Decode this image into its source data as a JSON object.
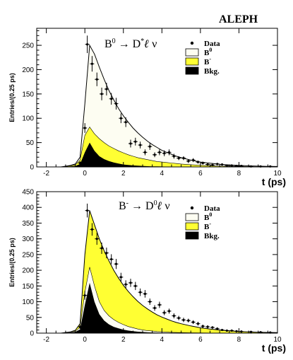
{
  "experiment_label": "ALEPH",
  "chart_data": [
    {
      "type": "area",
      "id": "top",
      "title_parts": {
        "a": "B",
        "a_sup": "0",
        "arrow": "→",
        "b": "D",
        "b_sup": "*",
        "c": "ℓ",
        "d": "ν"
      },
      "xlabel": "t (ps)",
      "ylabel": "Entries/(0.25 ps)",
      "xlim": [
        -2.5,
        10
      ],
      "ylim": [
        0,
        285
      ],
      "xticks": [
        -2,
        0,
        2,
        4,
        6,
        8,
        10
      ],
      "yticks": [
        0,
        50,
        100,
        150,
        200,
        250
      ],
      "legend": {
        "position": "top-right",
        "entries": [
          {
            "label": "Data",
            "style": "dot"
          },
          {
            "label": "B",
            "sup": "0",
            "style": "box",
            "color": "#fdfdf2"
          },
          {
            "label": "B",
            "sup": "-",
            "style": "box",
            "color": "#ffff33"
          },
          {
            "label": "Bkg.",
            "style": "box",
            "color": "#000000"
          }
        ]
      },
      "x": [
        -2.0,
        -1.75,
        -1.5,
        -1.25,
        -1.0,
        -0.75,
        -0.5,
        -0.25,
        0.0,
        0.25,
        0.5,
        0.75,
        1.0,
        1.25,
        1.5,
        1.75,
        2.0,
        2.25,
        2.5,
        2.75,
        3.0,
        3.25,
        3.5,
        3.75,
        4.0,
        4.25,
        4.5,
        4.75,
        5.0,
        5.5,
        6.0,
        6.5,
        7.0,
        7.5,
        8.0,
        8.5,
        9.0,
        9.5,
        10.0
      ],
      "series": [
        {
          "name": "Bkg.",
          "color": "#000000",
          "values": [
            0,
            0,
            0,
            0,
            0.5,
            1,
            2,
            6,
            30,
            50,
            33,
            22,
            16,
            12,
            9,
            7,
            5,
            4,
            3,
            2.5,
            2,
            1.5,
            1.2,
            1,
            0.8,
            0.6,
            0.5,
            0.4,
            0.3,
            0.2,
            0.1,
            0.1,
            0,
            0,
            0,
            0,
            0,
            0,
            0
          ]
        },
        {
          "name": "B-",
          "color": "#ffff33",
          "values": [
            0,
            0,
            0,
            0,
            1,
            2,
            4,
            14,
            65,
            82,
            68,
            58,
            50,
            43,
            38,
            33,
            29,
            25,
            22,
            19,
            17,
            15,
            13,
            11,
            10,
            9,
            8,
            7,
            6,
            4.5,
            3.3,
            2.5,
            1.8,
            1.3,
            1,
            0.7,
            0.5,
            0.3,
            0.2
          ]
        },
        {
          "name": "B0 (total fit)",
          "color": "#fdfdf2",
          "values": [
            0,
            0,
            0,
            0,
            1.5,
            3,
            6,
            20,
            130,
            250,
            232,
            205,
            180,
            157,
            138,
            120,
            105,
            92,
            80,
            70,
            61,
            53,
            46,
            40,
            34,
            30,
            26,
            22,
            19,
            14,
            10,
            7.5,
            5.5,
            4,
            3,
            2.2,
            1.6,
            1.2,
            0.8
          ]
        }
      ],
      "data_points": {
        "x": [
          -0.25,
          0.0,
          0.125,
          0.375,
          0.625,
          0.875,
          1.125,
          1.375,
          1.625,
          1.875,
          2.125,
          2.375,
          2.625,
          2.875,
          3.125,
          3.375,
          3.625,
          3.875,
          4.125,
          4.375,
          4.625,
          4.875,
          5.125,
          5.375,
          5.625,
          5.875,
          6.125,
          6.375,
          6.625,
          6.875,
          7.125,
          7.375,
          7.625,
          7.875,
          8.125,
          8.625,
          9.125,
          9.625
        ],
        "y": [
          8,
          80,
          252,
          212,
          180,
          150,
          160,
          140,
          130,
          100,
          92,
          48,
          52,
          45,
          30,
          42,
          25,
          30,
          28,
          30,
          22,
          18,
          18,
          12,
          14,
          10,
          8,
          5,
          4,
          6,
          5,
          3,
          3,
          2,
          2,
          1,
          1,
          1
        ],
        "err": [
          4,
          10,
          18,
          16,
          14,
          13,
          13,
          12,
          12,
          10,
          10,
          8,
          8,
          7,
          6,
          7,
          5,
          6,
          6,
          6,
          5,
          4,
          4,
          4,
          4,
          3,
          3,
          2,
          2,
          2,
          2,
          2,
          2,
          1,
          1,
          1,
          1,
          1
        ]
      }
    },
    {
      "type": "area",
      "id": "bottom",
      "title_parts": {
        "a": "B",
        "a_sup": "-",
        "arrow": "→",
        "b": "D",
        "b_sup": "0",
        "c": "ℓ",
        "d": "ν"
      },
      "xlabel": "t (ps)",
      "ylabel": "Entries/(0.25 ps)",
      "xlim": [
        -2.5,
        10
      ],
      "ylim": [
        0,
        450
      ],
      "xticks": [
        -2,
        0,
        2,
        4,
        6,
        8,
        10
      ],
      "yticks": [
        0,
        50,
        100,
        150,
        200,
        250,
        300,
        350,
        400,
        450
      ],
      "legend": {
        "position": "top-right",
        "entries": [
          {
            "label": "Data",
            "style": "dot"
          },
          {
            "label": "B",
            "sup": "0",
            "style": "box",
            "color": "#fdfdf2"
          },
          {
            "label": "B",
            "sup": "-",
            "style": "box",
            "color": "#ffff33"
          },
          {
            "label": "Bkg.",
            "style": "box",
            "color": "#000000"
          }
        ]
      },
      "x": [
        -2.0,
        -1.75,
        -1.5,
        -1.25,
        -1.0,
        -0.75,
        -0.5,
        -0.25,
        0.0,
        0.25,
        0.5,
        0.75,
        1.0,
        1.25,
        1.5,
        1.75,
        2.0,
        2.25,
        2.5,
        2.75,
        3.0,
        3.25,
        3.5,
        3.75,
        4.0,
        4.25,
        4.5,
        4.75,
        5.0,
        5.5,
        6.0,
        6.5,
        7.0,
        7.5,
        8.0,
        8.5,
        9.0,
        9.5,
        10.0
      ],
      "series": [
        {
          "name": "Bkg.",
          "color": "#000000",
          "values": [
            0,
            0,
            0,
            0,
            1,
            2,
            4,
            12,
            90,
            160,
            100,
            60,
            40,
            28,
            20,
            15,
            11,
            8,
            6,
            4.5,
            3.5,
            2.5,
            2,
            1.5,
            1.2,
            1,
            0.8,
            0.6,
            0.5,
            0.3,
            0.2,
            0.1,
            0,
            0,
            0,
            0,
            0,
            0,
            0
          ]
        },
        {
          "name": "B0",
          "color": "#fdfdf2",
          "values": [
            0,
            0,
            0,
            0,
            1.5,
            3,
            6,
            18,
            130,
            210,
            150,
            100,
            72,
            55,
            43,
            34,
            27,
            21,
            17,
            13,
            10,
            8,
            6.5,
            5,
            4,
            3.2,
            2.5,
            2,
            1.6,
            1,
            0.6,
            0.4,
            0.2,
            0.1,
            0,
            0,
            0,
            0,
            0
          ]
        },
        {
          "name": "B- (total fit)",
          "color": "#ffff33",
          "values": [
            0,
            0,
            0,
            0,
            2,
            4,
            9,
            30,
            250,
            390,
            345,
            300,
            262,
            230,
            200,
            175,
            152,
            133,
            116,
            101,
            88,
            77,
            67,
            58,
            51,
            45,
            39,
            34,
            30,
            23,
            17,
            13,
            10,
            7.5,
            5.5,
            4,
            3,
            2.2,
            1.6
          ]
        }
      ],
      "data_points": {
        "x": [
          -0.25,
          0.0,
          0.125,
          0.375,
          0.625,
          0.875,
          1.125,
          1.375,
          1.625,
          1.875,
          2.125,
          2.375,
          2.625,
          2.875,
          3.125,
          3.375,
          3.625,
          3.875,
          4.125,
          4.375,
          4.625,
          4.875,
          5.125,
          5.375,
          5.625,
          5.875,
          6.125,
          6.375,
          6.625,
          6.875,
          7.125,
          7.375,
          7.625,
          7.875,
          8.125,
          8.625,
          9.125,
          9.625
        ],
        "y": [
          20,
          120,
          390,
          330,
          300,
          270,
          255,
          235,
          220,
          178,
          155,
          160,
          150,
          130,
          125,
          100,
          80,
          90,
          65,
          70,
          55,
          48,
          42,
          40,
          35,
          30,
          22,
          20,
          18,
          14,
          10,
          8,
          8,
          6,
          5,
          4,
          3,
          2
        ],
        "err": [
          6,
          14,
          22,
          20,
          19,
          18,
          17,
          16,
          16,
          14,
          13,
          13,
          13,
          12,
          12,
          10,
          9,
          10,
          8,
          8,
          8,
          7,
          7,
          6,
          6,
          6,
          5,
          5,
          4,
          4,
          3,
          3,
          3,
          3,
          2,
          2,
          2,
          1
        ]
      }
    }
  ]
}
